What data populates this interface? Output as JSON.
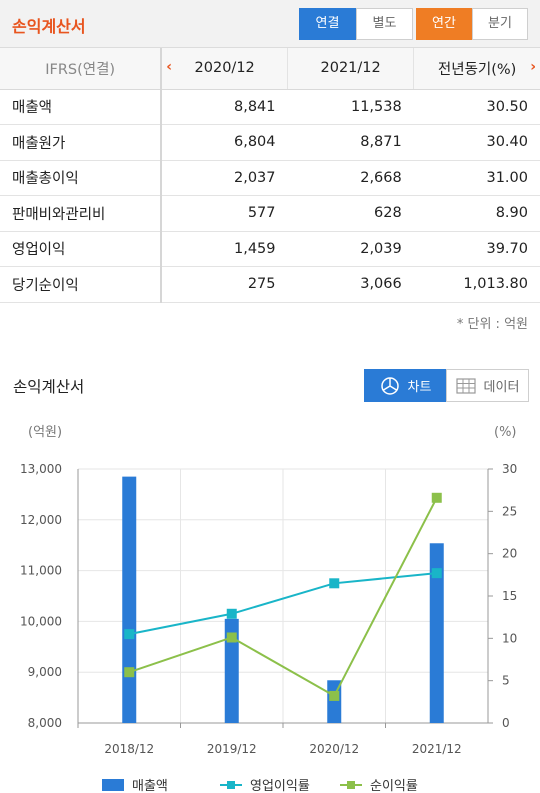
{
  "header": {
    "title": "손익계산서",
    "basis_options": [
      "연결",
      "별도"
    ],
    "period_options": [
      "연간",
      "분기"
    ]
  },
  "table": {
    "head_label": "IFRS(연결)",
    "columns": [
      "2020/12",
      "2021/12",
      "전년동기(%)"
    ],
    "rows": [
      {
        "label": "매출액",
        "values": [
          "8,841",
          "11,538",
          "30.50"
        ]
      },
      {
        "label": "매출원가",
        "values": [
          "6,804",
          "8,871",
          "30.40"
        ]
      },
      {
        "label": "매출총이익",
        "values": [
          "2,037",
          "2,668",
          "31.00"
        ]
      },
      {
        "label": "판매비와관리비",
        "values": [
          "577",
          "628",
          "8.90"
        ]
      },
      {
        "label": "영업이익",
        "values": [
          "1,459",
          "2,039",
          "39.70"
        ]
      },
      {
        "label": "당기순이익",
        "values": [
          "275",
          "3,066",
          "1,013.80"
        ]
      }
    ],
    "unit_note": "* 단위 : 억원"
  },
  "chart_section": {
    "title": "손익계산서",
    "chart_toggle": "차트",
    "data_toggle": "데이터"
  },
  "chart_data": {
    "type": "bar",
    "categories": [
      "2018/12",
      "2019/12",
      "2020/12",
      "2021/12"
    ],
    "left_axis_unit": "(억원)",
    "right_axis_unit": "(%)",
    "left_ticks": [
      "13,000",
      "12,000",
      "11,000",
      "10,000",
      "9,000",
      "8,000"
    ],
    "right_ticks": [
      "30",
      "25",
      "20",
      "15",
      "10",
      "5",
      "0"
    ],
    "ylim_left": [
      8000,
      13000
    ],
    "ylim_right": [
      0,
      30
    ],
    "grid": true,
    "legend_position": "bottom",
    "series": [
      {
        "name": "매출액",
        "kind": "bar",
        "axis": "left",
        "color": "#2a7bd6",
        "values": [
          12850,
          10050,
          8841,
          11538
        ]
      },
      {
        "name": "영업이익률",
        "kind": "line",
        "axis": "right",
        "color": "#19b5c8",
        "values": [
          10.5,
          12.9,
          16.5,
          17.7
        ]
      },
      {
        "name": "순이익률",
        "kind": "line",
        "axis": "right",
        "color": "#8cc04a",
        "values": [
          6.0,
          10.1,
          3.2,
          26.6
        ]
      }
    ]
  }
}
